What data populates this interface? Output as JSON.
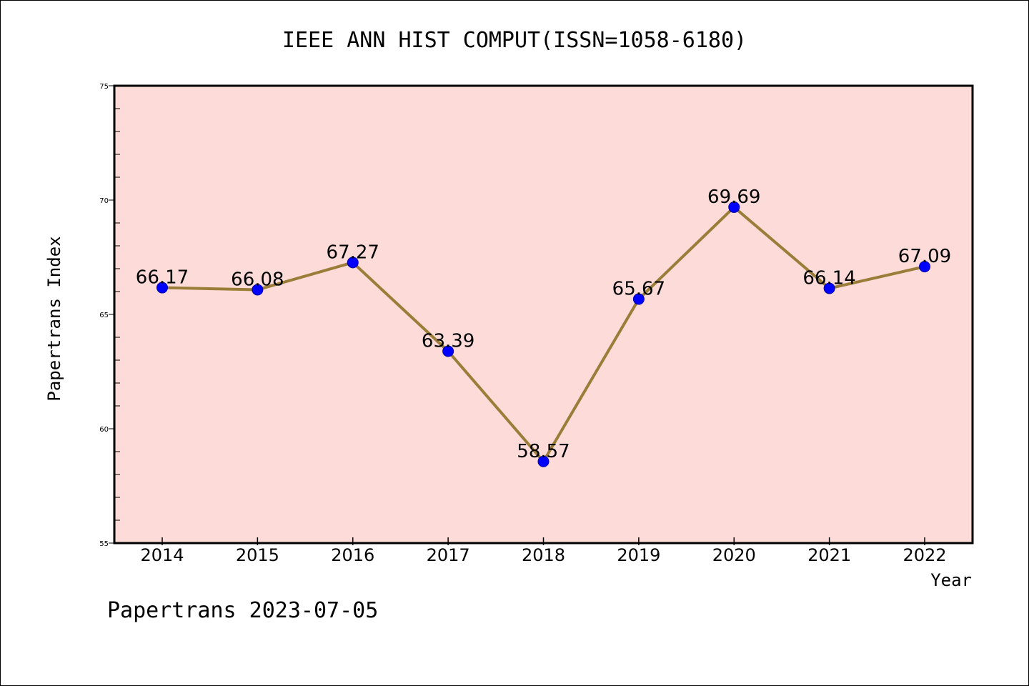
{
  "title": "IEEE ANN HIST COMPUT(ISSN=1058-6180)",
  "footer": "Papertrans 2023-07-05",
  "chart_data": {
    "type": "line",
    "title": "IEEE ANN HIST COMPUT(ISSN=1058-6180)",
    "xlabel": "Year",
    "ylabel": "Papertrans Index",
    "categories": [
      "2014",
      "2015",
      "2016",
      "2017",
      "2018",
      "2019",
      "2020",
      "2021",
      "2022"
    ],
    "series": [
      {
        "values": [
          66.17,
          66.08,
          67.27,
          63.39,
          58.57,
          65.67,
          69.69,
          66.14,
          67.09
        ],
        "labels": [
          "66.17",
          "66.08",
          "67.27",
          "63.39",
          "58.57",
          "65.67",
          "69.69",
          "66.14",
          "67.09"
        ]
      }
    ],
    "ylim": [
      55,
      75
    ],
    "yticks": [
      "55",
      "60",
      "65",
      "70",
      "75"
    ],
    "grid": false,
    "legend": "none",
    "colors": {
      "plot_background": "#fddbd8",
      "line": "#9b7d3a",
      "marker_fill": "#0000ff",
      "marker_edge": "#0000aa"
    }
  }
}
